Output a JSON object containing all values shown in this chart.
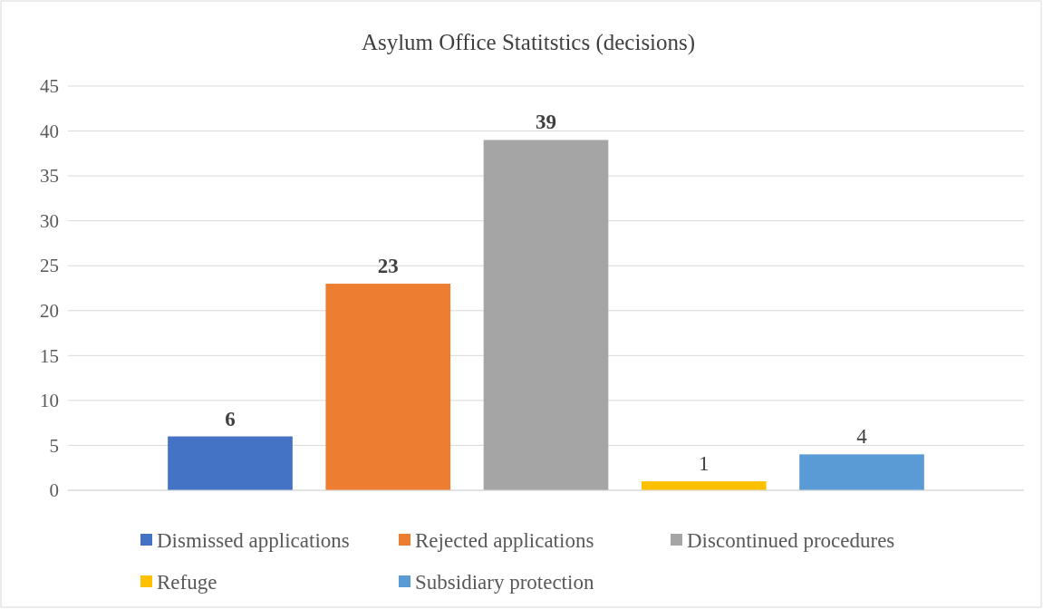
{
  "chart_data": {
    "type": "bar",
    "title": "Asylum Office Statitstics (decisions)",
    "categories": [
      null
    ],
    "series": [
      {
        "name": "Dismissed applications",
        "color": "#4472c4",
        "values": [
          6
        ]
      },
      {
        "name": "Rejected applications",
        "color": "#ed7d31",
        "values": [
          23
        ]
      },
      {
        "name": "Discontinued procedures",
        "color": "#a5a5a5",
        "values": [
          39
        ]
      },
      {
        "name": "Refuge",
        "color": "#ffc000",
        "values": [
          1
        ]
      },
      {
        "name": "Subsidiary protection",
        "color": "#5b9bd5",
        "values": [
          4
        ]
      }
    ],
    "ylim": [
      0,
      45
    ],
    "yticks": [
      0,
      5,
      10,
      15,
      20,
      25,
      30,
      35,
      40,
      45
    ],
    "grid": "y",
    "legend": "bottom",
    "data_labels": true
  }
}
